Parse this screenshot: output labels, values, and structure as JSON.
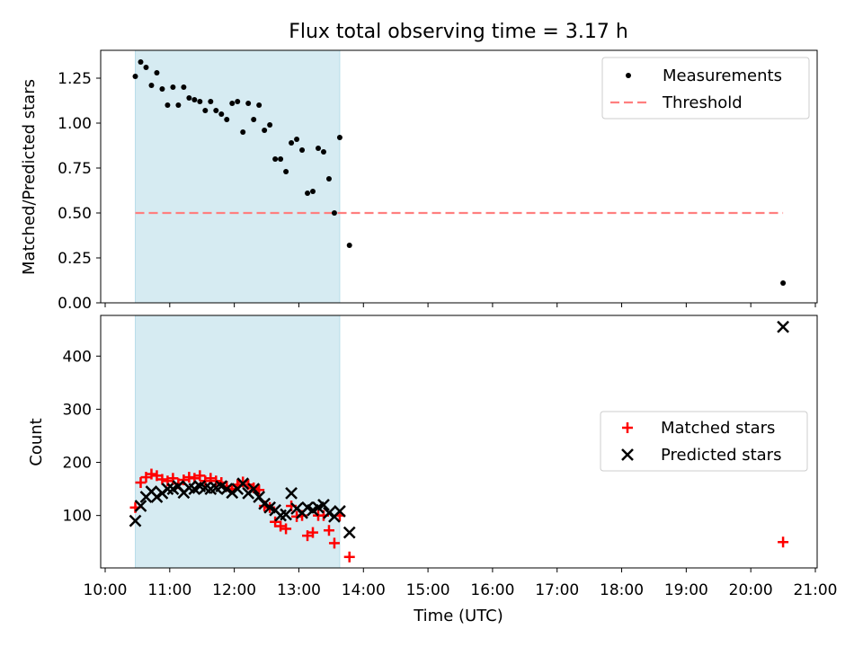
{
  "title": "Flux total observing time = 3.17 h",
  "chart_data": [
    {
      "type": "scatter",
      "panel": "top",
      "ylabel": "Matched/Predicted stars",
      "ylim": [
        0,
        1.4
      ],
      "xlim": [
        "10:00",
        "21:00"
      ],
      "yticks": [
        0.0,
        0.25,
        0.5,
        0.75,
        1.0,
        1.25
      ],
      "ytick_labels": [
        "0.00",
        "0.25",
        "0.50",
        "0.75",
        "1.00",
        "1.25"
      ],
      "shaded_span": [
        "10:28",
        "13:38"
      ],
      "shaded_color": "#add8e6",
      "legend_position": "upper right",
      "threshold": {
        "name": "Threshold",
        "value": 0.5,
        "x": [
          "10:28",
          "20:30"
        ],
        "color": "#ff7f7f",
        "style": "dashed"
      },
      "series": [
        {
          "name": "Measurements",
          "marker": "dot",
          "color": "#000000",
          "points": [
            [
              "10:28",
              1.26
            ],
            [
              "10:33",
              1.34
            ],
            [
              "10:38",
              1.31
            ],
            [
              "10:43",
              1.21
            ],
            [
              "10:48",
              1.28
            ],
            [
              "10:53",
              1.19
            ],
            [
              "10:58",
              1.1
            ],
            [
              "11:03",
              1.2
            ],
            [
              "11:08",
              1.1
            ],
            [
              "11:13",
              1.2
            ],
            [
              "11:18",
              1.14
            ],
            [
              "11:23",
              1.13
            ],
            [
              "11:28",
              1.12
            ],
            [
              "11:33",
              1.07
            ],
            [
              "11:38",
              1.12
            ],
            [
              "11:43",
              1.07
            ],
            [
              "11:48",
              1.05
            ],
            [
              "11:53",
              1.02
            ],
            [
              "11:58",
              1.11
            ],
            [
              "12:03",
              1.12
            ],
            [
              "12:08",
              0.95
            ],
            [
              "12:13",
              1.11
            ],
            [
              "12:18",
              1.02
            ],
            [
              "12:23",
              1.1
            ],
            [
              "12:28",
              0.96
            ],
            [
              "12:33",
              0.99
            ],
            [
              "12:38",
              0.8
            ],
            [
              "12:43",
              0.8
            ],
            [
              "12:48",
              0.73
            ],
            [
              "12:53",
              0.89
            ],
            [
              "12:58",
              0.91
            ],
            [
              "13:03",
              0.85
            ],
            [
              "13:08",
              0.61
            ],
            [
              "13:13",
              0.62
            ],
            [
              "13:18",
              0.86
            ],
            [
              "13:23",
              0.84
            ],
            [
              "13:28",
              0.69
            ],
            [
              "13:33",
              0.5
            ],
            [
              "13:38",
              0.92
            ],
            [
              "13:47",
              0.32
            ],
            [
              "20:30",
              0.11
            ]
          ]
        }
      ]
    },
    {
      "type": "scatter",
      "panel": "bottom",
      "xlabel": "Time (UTC)",
      "ylabel": "Count",
      "ylim": [
        0,
        475
      ],
      "xlim": [
        "10:00",
        "21:00"
      ],
      "yticks": [
        100,
        200,
        300,
        400
      ],
      "ytick_labels": [
        "100",
        "200",
        "300",
        "400"
      ],
      "xtick_labels": [
        "10:00",
        "11:00",
        "12:00",
        "13:00",
        "14:00",
        "15:00",
        "16:00",
        "17:00",
        "18:00",
        "19:00",
        "20:00",
        "21:00"
      ],
      "shaded_span": [
        "10:28",
        "13:38"
      ],
      "shaded_color": "#add8e6",
      "legend_position": "center right",
      "series": [
        {
          "name": "Matched stars",
          "marker": "plus",
          "color": "#ff0000",
          "points": [
            [
              "10:28",
              115
            ],
            [
              "10:33",
              162
            ],
            [
              "10:38",
              172
            ],
            [
              "10:43",
              178
            ],
            [
              "10:48",
              175
            ],
            [
              "10:53",
              168
            ],
            [
              "10:58",
              165
            ],
            [
              "11:03",
              170
            ],
            [
              "11:08",
              160
            ],
            [
              "11:13",
              167
            ],
            [
              "11:18",
              172
            ],
            [
              "11:23",
              170
            ],
            [
              "11:28",
              175
            ],
            [
              "11:33",
              165
            ],
            [
              "11:38",
              170
            ],
            [
              "11:43",
              165
            ],
            [
              "11:48",
              162
            ],
            [
              "11:53",
              155
            ],
            [
              "11:58",
              150
            ],
            [
              "12:03",
              158
            ],
            [
              "12:08",
              163
            ],
            [
              "12:13",
              158
            ],
            [
              "12:18",
              152
            ],
            [
              "12:23",
              148
            ],
            [
              "12:28",
              118
            ],
            [
              "12:33",
              115
            ],
            [
              "12:38",
              88
            ],
            [
              "12:43",
              80
            ],
            [
              "12:48",
              75
            ],
            [
              "12:53",
              118
            ],
            [
              "12:58",
              98
            ],
            [
              "13:03",
              100
            ],
            [
              "13:08",
              62
            ],
            [
              "13:13",
              68
            ],
            [
              "13:18",
              100
            ],
            [
              "13:23",
              100
            ],
            [
              "13:28",
              72
            ],
            [
              "13:33",
              48
            ],
            [
              "13:38",
              100
            ],
            [
              "13:47",
              22
            ],
            [
              "20:30",
              50
            ]
          ]
        },
        {
          "name": "Predicted stars",
          "marker": "x",
          "color": "#000000",
          "points": [
            [
              "10:28",
              90
            ],
            [
              "10:33",
              118
            ],
            [
              "10:38",
              135
            ],
            [
              "10:43",
              145
            ],
            [
              "10:48",
              135
            ],
            [
              "10:53",
              142
            ],
            [
              "10:58",
              150
            ],
            [
              "11:03",
              150
            ],
            [
              "11:08",
              155
            ],
            [
              "11:13",
              143
            ],
            [
              "11:18",
              152
            ],
            [
              "11:23",
              150
            ],
            [
              "11:28",
              155
            ],
            [
              "11:33",
              152
            ],
            [
              "11:38",
              150
            ],
            [
              "11:43",
              152
            ],
            [
              "11:48",
              155
            ],
            [
              "11:53",
              150
            ],
            [
              "11:58",
              143
            ],
            [
              "12:03",
              150
            ],
            [
              "12:08",
              160
            ],
            [
              "12:13",
              142
            ],
            [
              "12:18",
              150
            ],
            [
              "12:23",
              135
            ],
            [
              "12:28",
              122
            ],
            [
              "12:33",
              115
            ],
            [
              "12:38",
              110
            ],
            [
              "12:43",
              100
            ],
            [
              "12:48",
              102
            ],
            [
              "12:53",
              142
            ],
            [
              "12:58",
              113
            ],
            [
              "13:03",
              105
            ],
            [
              "13:08",
              115
            ],
            [
              "13:13",
              110
            ],
            [
              "13:18",
              115
            ],
            [
              "13:23",
              120
            ],
            [
              "13:28",
              105
            ],
            [
              "13:33",
              98
            ],
            [
              "13:38",
              108
            ],
            [
              "13:47",
              68
            ],
            [
              "20:30",
              455
            ]
          ]
        }
      ]
    }
  ]
}
